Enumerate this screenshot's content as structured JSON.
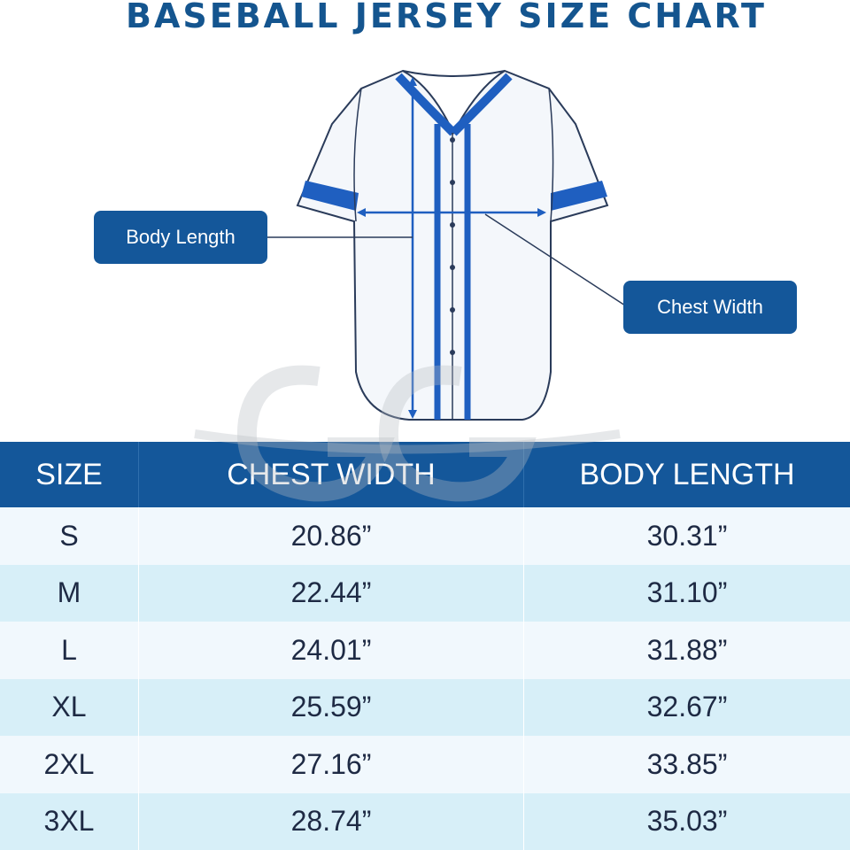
{
  "title": "BASEBALL JERSEY SIZE CHART",
  "callouts": {
    "body_length": "Body Length",
    "chest_width": "Chest Width"
  },
  "colors": {
    "brand_blue": "#14579a",
    "jersey_trim": "#1f5fc0",
    "row_light": "#f1f8fd",
    "row_tint": "#d7eff8"
  },
  "table": {
    "headers": [
      "SIZE",
      "CHEST WIDTH",
      "BODY LENGTH"
    ],
    "rows": [
      {
        "size": "S",
        "chest": "20.86”",
        "length": "30.31”"
      },
      {
        "size": "M",
        "chest": "22.44”",
        "length": "31.10”"
      },
      {
        "size": "L",
        "chest": "24.01”",
        "length": "31.88”"
      },
      {
        "size": "XL",
        "chest": "25.59”",
        "length": "32.67”"
      },
      {
        "size": "2XL",
        "chest": "27.16”",
        "length": "33.85”"
      },
      {
        "size": "3XL",
        "chest": "28.74”",
        "length": "35.03”"
      }
    ]
  }
}
